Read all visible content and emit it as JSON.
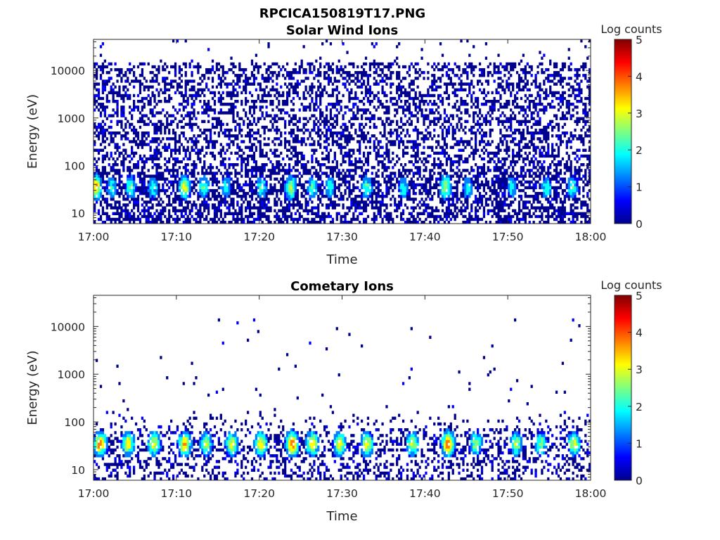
{
  "figure": {
    "title": "RPCICA150819T17.PNG"
  },
  "colormap": [
    "#00008f",
    "#0000ff",
    "#0080ff",
    "#00ffff",
    "#80ff80",
    "#ffff00",
    "#ff8000",
    "#ff0000",
    "#800000"
  ],
  "chart_data": [
    {
      "type": "heatmap",
      "title": "Solar Wind Ions",
      "xlabel": "Time",
      "ylabel": "Energy (eV)",
      "x_ticks": [
        "17:00",
        "17:10",
        "17:20",
        "17:30",
        "17:40",
        "17:50",
        "18:00"
      ],
      "x_range_minutes": [
        0,
        60
      ],
      "y_scale": "log",
      "y_ticks": [
        {
          "value": 10,
          "label": "10"
        },
        {
          "value": 100,
          "label": "100"
        },
        {
          "value": 1000,
          "label": "1000"
        },
        {
          "value": 10000,
          "label": "10000"
        }
      ],
      "y_range": [
        6,
        45000
      ],
      "colorbar": {
        "label": "Log counts",
        "min": 0,
        "max": 5,
        "ticks": [
          "0",
          "1",
          "2",
          "3",
          "4",
          "5"
        ]
      },
      "peak_minutes": [
        0.3,
        2.2,
        4.5,
        7.2,
        11.0,
        13.3,
        16.0,
        20.3,
        23.8,
        26.4,
        28.5,
        33.0,
        37.4,
        42.5,
        45.2,
        50.5,
        54.7,
        57.8
      ],
      "peak_energy_eV": 35,
      "peak_log_counts": [
        3.6,
        2.0,
        2.2,
        2.0,
        3.0,
        2.2,
        2.0,
        2.2,
        2.9,
        2.2,
        2.0,
        2.2,
        2.0,
        2.9,
        2.0,
        2.0,
        2.0,
        2.2
      ]
    },
    {
      "type": "heatmap",
      "title": "Cometary Ions",
      "xlabel": "Time",
      "ylabel": "Energy (eV)",
      "x_ticks": [
        "17:00",
        "17:10",
        "17:20",
        "17:30",
        "17:40",
        "17:50",
        "18:00"
      ],
      "x_range_minutes": [
        0,
        60
      ],
      "y_scale": "log",
      "y_ticks": [
        {
          "value": 10,
          "label": "10"
        },
        {
          "value": 100,
          "label": "100"
        },
        {
          "value": 1000,
          "label": "1000"
        },
        {
          "value": 10000,
          "label": "10000"
        }
      ],
      "y_range": [
        6,
        45000
      ],
      "colorbar": {
        "label": "Log counts",
        "min": 0,
        "max": 5,
        "ticks": [
          "0",
          "1",
          "2",
          "3",
          "4",
          "5"
        ]
      },
      "peak_minutes": [
        0.8,
        4.2,
        7.3,
        11.0,
        13.6,
        16.7,
        20.2,
        24.0,
        26.4,
        29.7,
        33.0,
        38.5,
        42.8,
        46.2,
        51.0,
        54.0,
        58.0
      ],
      "peak_energy_eV": 35,
      "peak_log_counts": [
        3.7,
        3.1,
        3.1,
        3.5,
        2.8,
        3.0,
        3.3,
        4.0,
        3.3,
        3.0,
        3.2,
        3.0,
        3.9,
        2.6,
        2.7,
        2.5,
        3.0
      ]
    }
  ]
}
